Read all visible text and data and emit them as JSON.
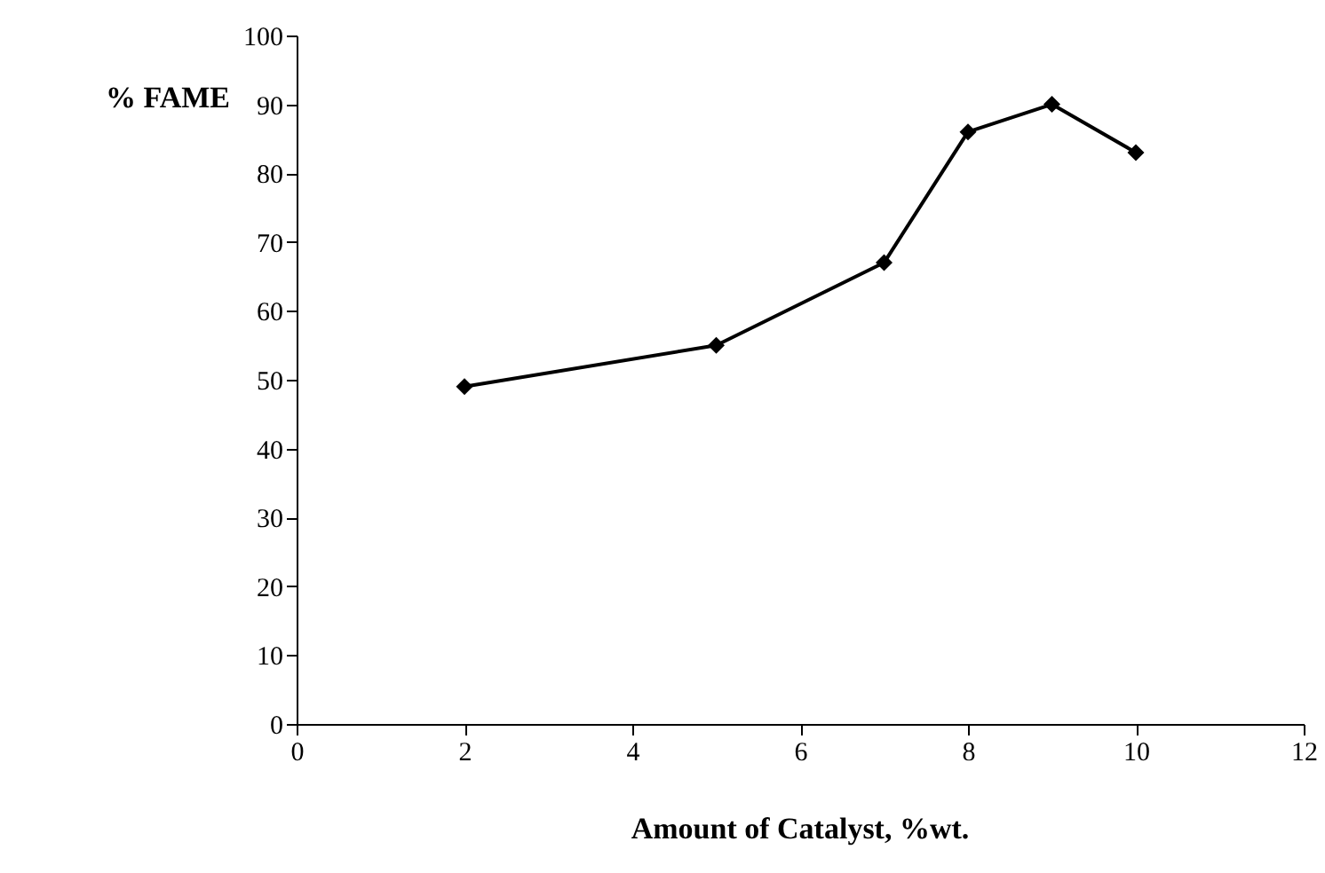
{
  "chart_data": {
    "type": "line",
    "xlabel": "Amount of Catalyst, %wt.",
    "ylabel": "% FAME",
    "x": [
      2,
      5,
      7,
      8,
      9,
      10
    ],
    "series": [
      {
        "color": "#000000",
        "values": [
          49,
          55,
          67,
          86,
          90,
          83
        ]
      }
    ],
    "xlim": [
      0,
      12
    ],
    "xticks": [
      0,
      2,
      4,
      6,
      8,
      10,
      12
    ],
    "ylim": [
      0,
      100
    ],
    "yticks": [
      0,
      10,
      20,
      30,
      40,
      50,
      60,
      70,
      80,
      90,
      100
    ],
    "grid": false,
    "marker": "diamond",
    "line_style": "solid"
  }
}
